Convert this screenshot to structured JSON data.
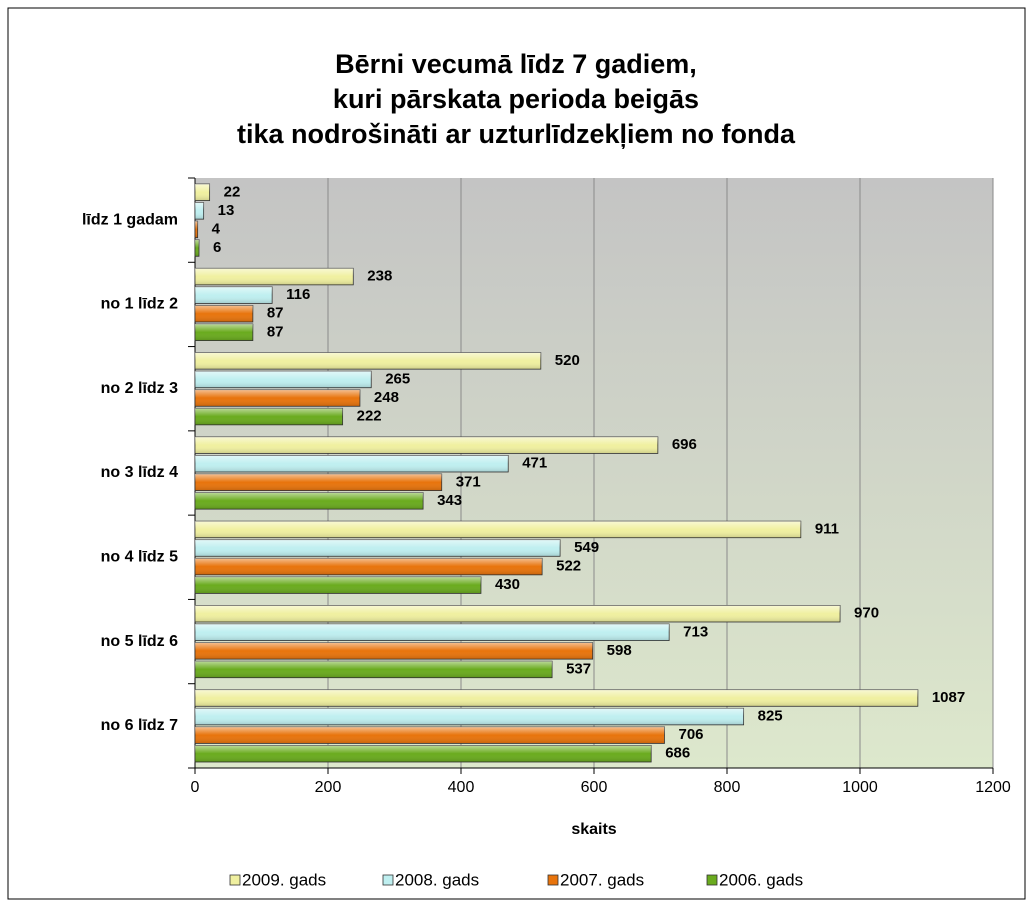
{
  "chart_data": {
    "type": "hbar",
    "title": [
      "Bērni vecumā līdz 7 gadiem,",
      "kuri pārskata perioda beigās",
      "tika nodrošināti ar uzturlīdzekļiem no fonda"
    ],
    "x_label": "skaits",
    "categories": [
      "līdz 1 gadam",
      "no 1 līdz 2",
      "no 2 līdz 3",
      "no 3 līdz 4",
      "no 4 līdz 5",
      "no 5 līdz 6",
      "no 6 līdz 7"
    ],
    "series": [
      {
        "name": "2009. gads",
        "color": "#f0f0a0",
        "values": [
          22,
          238,
          520,
          696,
          911,
          970,
          1087
        ]
      },
      {
        "name": "2008. gads",
        "color": "#bfeff0",
        "values": [
          13,
          116,
          265,
          471,
          549,
          713,
          825
        ]
      },
      {
        "name": "2007. gads",
        "color": "#e8740c",
        "values": [
          4,
          87,
          248,
          371,
          522,
          598,
          706
        ]
      },
      {
        "name": "2006. gads",
        "color": "#6aab1e",
        "values": [
          6,
          87,
          222,
          343,
          430,
          537,
          686
        ]
      }
    ],
    "xlim": [
      0,
      1200
    ],
    "xticks": [
      0,
      200,
      400,
      600,
      800,
      1000,
      1200
    ],
    "grid": true
  }
}
